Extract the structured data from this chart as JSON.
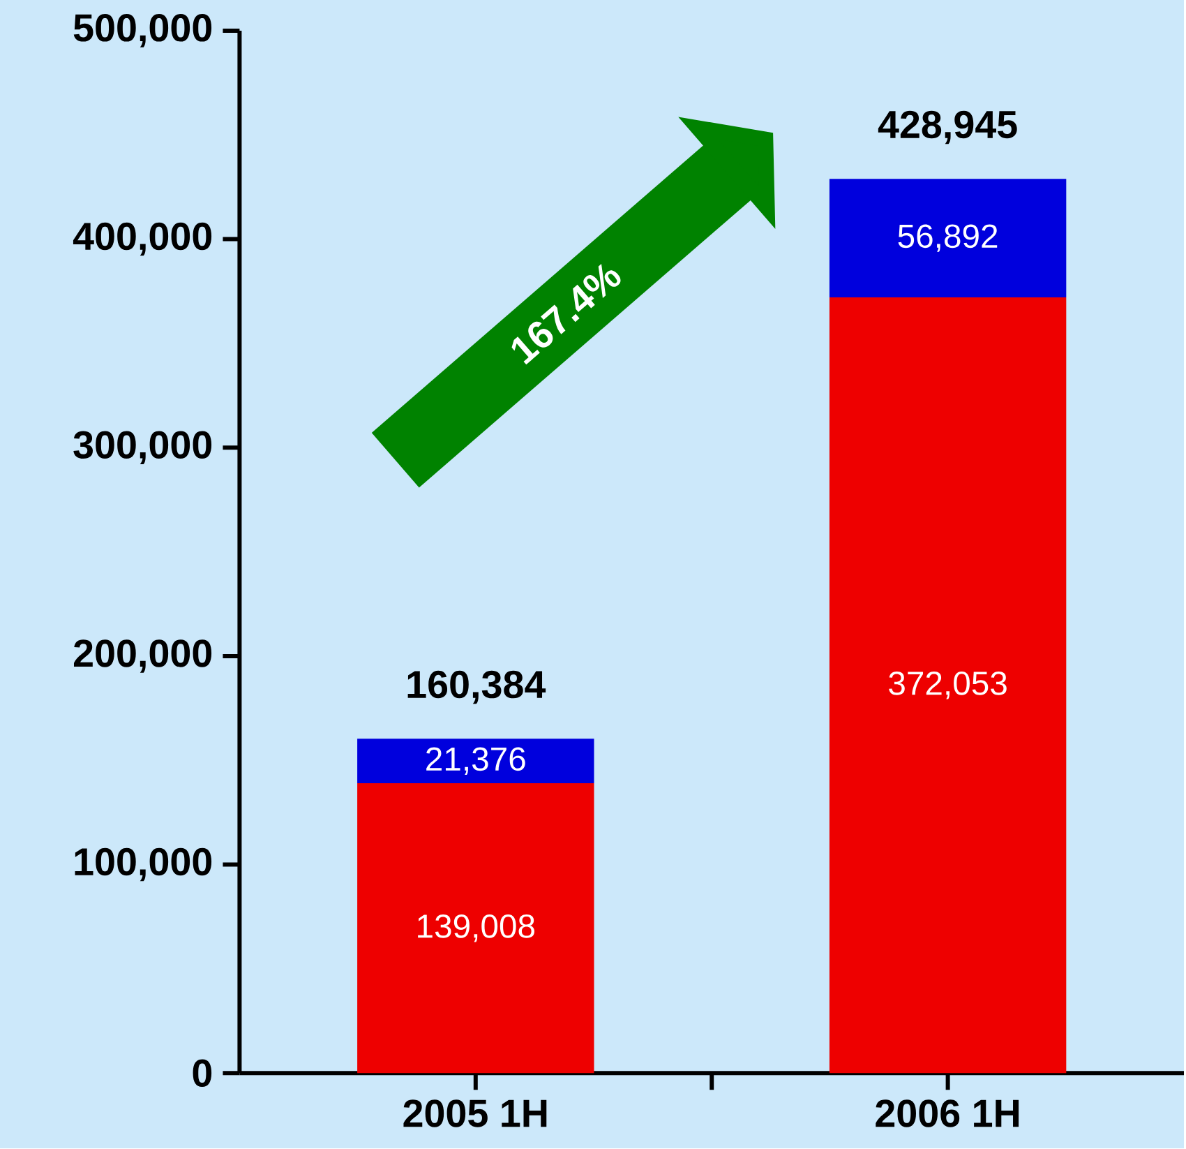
{
  "chart_data": {
    "type": "bar",
    "stacked": true,
    "categories": [
      "2005 1H",
      "2006 1H"
    ],
    "series": [
      {
        "color": "#ee0000",
        "values": [
          139008,
          372053
        ],
        "value_labels": [
          "139,008",
          "372,053"
        ]
      },
      {
        "color": "#0000dd",
        "values": [
          21376,
          56892
        ],
        "value_labels": [
          "21,376",
          "56,892"
        ]
      }
    ],
    "totals": [
      "160,384",
      "428,945"
    ],
    "ylim": [
      0,
      500000
    ],
    "yticks": [
      {
        "value": 0,
        "label": "0"
      },
      {
        "value": 100000,
        "label": "100,000"
      },
      {
        "value": 200000,
        "label": "200,000"
      },
      {
        "value": 300000,
        "label": "300,000"
      },
      {
        "value": 400000,
        "label": "400,000"
      },
      {
        "value": 500000,
        "label": "500,000"
      }
    ],
    "annotations": [
      "167.4%"
    ],
    "grid": false
  }
}
